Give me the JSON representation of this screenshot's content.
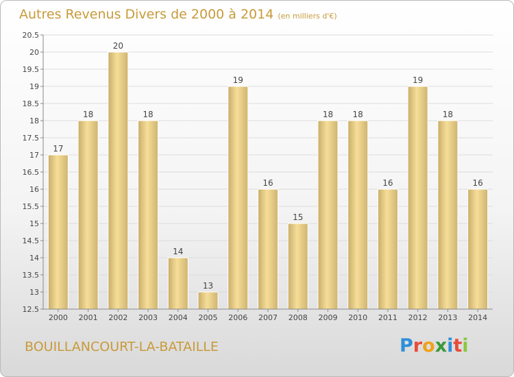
{
  "title": "Autres Revenus Divers de 2000 à 2014",
  "unit_note": "(en milliers d'€)",
  "commune": "BOUILLANCOURT-LA-BATAILLE",
  "logo_letters": [
    {
      "ch": "P",
      "color": "#2f8fd8"
    },
    {
      "ch": "r",
      "color": "#e84b3a"
    },
    {
      "ch": "o",
      "color": "#f0a21b"
    },
    {
      "ch": "x",
      "color": "#3a9a3a"
    },
    {
      "ch": "i",
      "color": "#2f8fd8"
    },
    {
      "ch": "t",
      "color": "#e84b3a"
    },
    {
      "ch": "i",
      "color": "#8cc63f"
    }
  ],
  "colors": {
    "accent": "#c89a3a",
    "bar_light": "#f5dc96",
    "bar_dark": "#c9ae6a"
  },
  "chart_data": {
    "type": "bar",
    "title": "Autres Revenus Divers de 2000 à 2014",
    "categories": [
      "2000",
      "2001",
      "2002",
      "2003",
      "2004",
      "2005",
      "2006",
      "2007",
      "2008",
      "2009",
      "2010",
      "2011",
      "2012",
      "2013",
      "2014"
    ],
    "values": [
      17,
      18,
      20,
      18,
      14,
      13,
      19,
      16,
      15,
      18,
      18,
      16,
      19,
      18,
      16
    ],
    "ylim": [
      12.5,
      20.5
    ],
    "yticks": [
      "12.5",
      "13",
      "13.5",
      "14",
      "14.5",
      "15",
      "15.5",
      "16",
      "16.5",
      "17",
      "17.5",
      "18",
      "18.5",
      "19",
      "19.5",
      "20",
      "20.5"
    ],
    "grid": true,
    "legend": "none"
  }
}
